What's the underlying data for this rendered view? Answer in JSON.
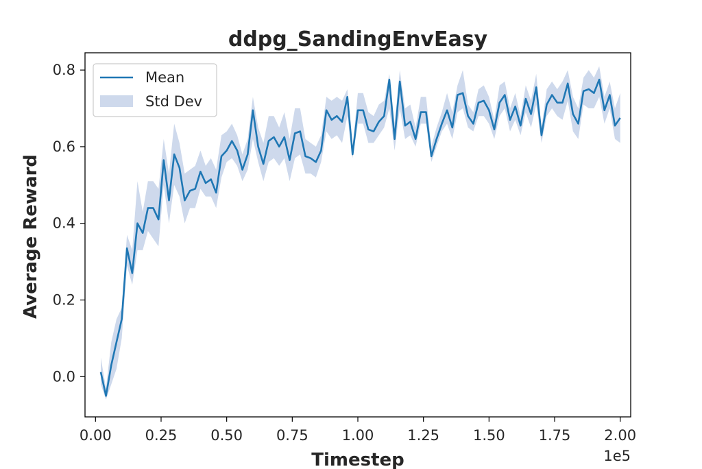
{
  "chart_data": {
    "type": "line",
    "title": "ddpg_SandingEnvEasy",
    "xlabel": "Timestep",
    "ylabel": "Average Reward",
    "x_offset_label": "1e5",
    "xlim": [
      -0.04,
      2.04
    ],
    "ylim": [
      -0.105,
      0.845
    ],
    "x_scale_note": "x values in units of 1e5 timesteps",
    "xticks": [
      0.0,
      0.25,
      0.5,
      0.75,
      1.0,
      1.25,
      1.5,
      1.75,
      2.0
    ],
    "xtick_labels": [
      "0.00",
      "0.25",
      "0.50",
      "0.75",
      "1.00",
      "1.25",
      "1.50",
      "1.75",
      "2.00"
    ],
    "yticks": [
      0.0,
      0.2,
      0.4,
      0.6,
      0.8
    ],
    "ytick_labels": [
      "0.0",
      "0.2",
      "0.4",
      "0.6",
      "0.8"
    ],
    "legend_position": "top-left",
    "grid": false,
    "colors": {
      "mean": "#1f77b4",
      "std": "#aec0e0"
    },
    "series": [
      {
        "name": "Mean",
        "kind": "line"
      },
      {
        "name": "Std Dev",
        "kind": "band"
      }
    ],
    "x": [
      0.02,
      0.04,
      0.06,
      0.08,
      0.1,
      0.12,
      0.14,
      0.16,
      0.18,
      0.2,
      0.22,
      0.24,
      0.26,
      0.28,
      0.3,
      0.32,
      0.34,
      0.36,
      0.38,
      0.4,
      0.42,
      0.44,
      0.46,
      0.48,
      0.5,
      0.52,
      0.54,
      0.56,
      0.58,
      0.6,
      0.62,
      0.64,
      0.66,
      0.68,
      0.7,
      0.72,
      0.74,
      0.76,
      0.78,
      0.8,
      0.82,
      0.84,
      0.86,
      0.88,
      0.9,
      0.92,
      0.94,
      0.96,
      0.98,
      1.0,
      1.02,
      1.04,
      1.06,
      1.08,
      1.1,
      1.12,
      1.14,
      1.16,
      1.18,
      1.2,
      1.22,
      1.24,
      1.26,
      1.28,
      1.3,
      1.32,
      1.34,
      1.36,
      1.38,
      1.4,
      1.42,
      1.44,
      1.46,
      1.48,
      1.5,
      1.52,
      1.54,
      1.56,
      1.58,
      1.6,
      1.62,
      1.64,
      1.66,
      1.68,
      1.7,
      1.72,
      1.74,
      1.76,
      1.78,
      1.8,
      1.82,
      1.84,
      1.86,
      1.88,
      1.9,
      1.92,
      1.94,
      1.96,
      1.98,
      2.0
    ],
    "mean": [
      0.012,
      -0.05,
      0.03,
      0.09,
      0.15,
      0.335,
      0.27,
      0.4,
      0.375,
      0.44,
      0.44,
      0.41,
      0.565,
      0.46,
      0.58,
      0.545,
      0.46,
      0.485,
      0.49,
      0.535,
      0.505,
      0.515,
      0.48,
      0.575,
      0.59,
      0.615,
      0.59,
      0.54,
      0.58,
      0.695,
      0.6,
      0.555,
      0.615,
      0.625,
      0.6,
      0.625,
      0.565,
      0.635,
      0.64,
      0.575,
      0.57,
      0.56,
      0.59,
      0.695,
      0.67,
      0.68,
      0.665,
      0.73,
      0.58,
      0.695,
      0.695,
      0.645,
      0.64,
      0.665,
      0.68,
      0.775,
      0.62,
      0.77,
      0.655,
      0.665,
      0.62,
      0.69,
      0.69,
      0.575,
      0.62,
      0.66,
      0.695,
      0.65,
      0.735,
      0.74,
      0.68,
      0.66,
      0.715,
      0.72,
      0.695,
      0.645,
      0.715,
      0.735,
      0.67,
      0.705,
      0.655,
      0.725,
      0.685,
      0.755,
      0.63,
      0.71,
      0.735,
      0.715,
      0.715,
      0.765,
      0.685,
      0.66,
      0.745,
      0.75,
      0.74,
      0.775,
      0.695,
      0.735,
      0.655,
      0.675
    ],
    "std_lower": [
      -0.02,
      -0.06,
      -0.02,
      0.02,
      0.1,
      0.29,
      0.24,
      0.33,
      0.33,
      0.38,
      0.36,
      0.34,
      0.5,
      0.4,
      0.5,
      0.47,
      0.4,
      0.44,
      0.44,
      0.49,
      0.47,
      0.47,
      0.44,
      0.52,
      0.56,
      0.57,
      0.55,
      0.51,
      0.54,
      0.62,
      0.56,
      0.51,
      0.56,
      0.57,
      0.55,
      0.57,
      0.51,
      0.57,
      0.58,
      0.53,
      0.53,
      0.52,
      0.56,
      0.64,
      0.62,
      0.63,
      0.61,
      0.68,
      0.57,
      0.66,
      0.66,
      0.61,
      0.61,
      0.63,
      0.65,
      0.7,
      0.59,
      0.7,
      0.62,
      0.63,
      0.6,
      0.66,
      0.66,
      0.56,
      0.6,
      0.64,
      0.66,
      0.62,
      0.69,
      0.7,
      0.65,
      0.64,
      0.68,
      0.68,
      0.66,
      0.62,
      0.68,
      0.7,
      0.64,
      0.67,
      0.63,
      0.69,
      0.65,
      0.71,
      0.61,
      0.68,
      0.7,
      0.68,
      0.67,
      0.72,
      0.64,
      0.62,
      0.71,
      0.7,
      0.7,
      0.73,
      0.66,
      0.7,
      0.62,
      0.61
    ],
    "std_upper": [
      0.05,
      -0.03,
      0.09,
      0.15,
      0.18,
      0.37,
      0.33,
      0.51,
      0.43,
      0.51,
      0.51,
      0.49,
      0.62,
      0.53,
      0.66,
      0.61,
      0.53,
      0.54,
      0.55,
      0.59,
      0.55,
      0.57,
      0.54,
      0.63,
      0.64,
      0.66,
      0.63,
      0.58,
      0.62,
      0.73,
      0.65,
      0.61,
      0.68,
      0.68,
      0.65,
      0.69,
      0.62,
      0.7,
      0.7,
      0.62,
      0.61,
      0.6,
      0.63,
      0.73,
      0.72,
      0.73,
      0.72,
      0.75,
      0.6,
      0.74,
      0.74,
      0.69,
      0.68,
      0.71,
      0.72,
      0.79,
      0.66,
      0.8,
      0.7,
      0.71,
      0.65,
      0.73,
      0.73,
      0.6,
      0.65,
      0.69,
      0.74,
      0.69,
      0.76,
      0.8,
      0.71,
      0.69,
      0.75,
      0.76,
      0.73,
      0.67,
      0.76,
      0.77,
      0.7,
      0.74,
      0.68,
      0.76,
      0.72,
      0.79,
      0.65,
      0.75,
      0.77,
      0.75,
      0.77,
      0.8,
      0.73,
      0.7,
      0.78,
      0.8,
      0.78,
      0.81,
      0.73,
      0.77,
      0.7,
      0.74
    ]
  }
}
